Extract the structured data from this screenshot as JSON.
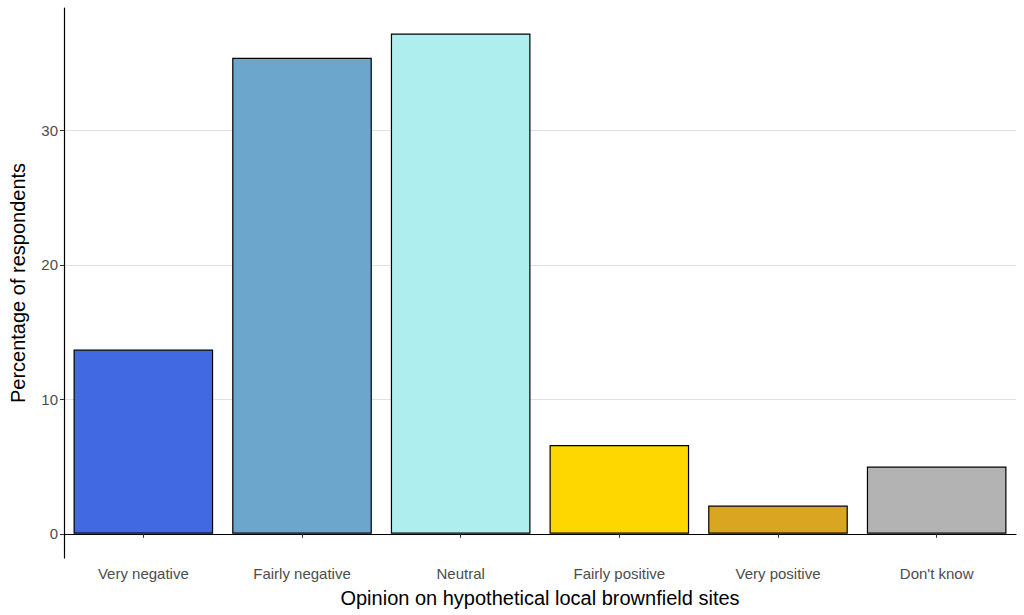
{
  "chart_data": {
    "type": "bar",
    "x_label": "Opinion on hypothetical local brownfield sites",
    "y_label": "Percentage of respondents",
    "categories": [
      "Very negative",
      "Fairly negative",
      "Neutral",
      "Fairly positive",
      "Very positive",
      "Don't know"
    ],
    "values": [
      13.7,
      35.4,
      37.2,
      6.6,
      2.1,
      5.0
    ],
    "colors": [
      "#4169E1",
      "#6CA6CD",
      "#AEEEEE",
      "#FFD700",
      "#DAA520",
      "#B3B3B3"
    ],
    "ylim": [
      -1.8,
      39.1
    ],
    "yticks": [
      0,
      10,
      20,
      30
    ],
    "grid": true
  }
}
